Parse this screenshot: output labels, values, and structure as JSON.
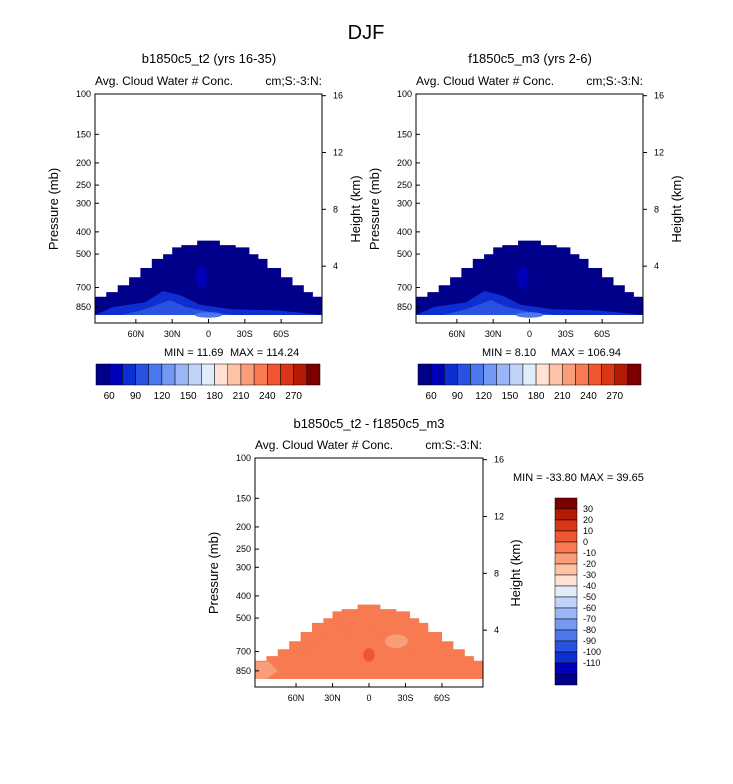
{
  "title": "DJF",
  "palette": {
    "blue_red": [
      "#00008a",
      "#0000b8",
      "#0d2ed1",
      "#2a52e0",
      "#4d77ec",
      "#7499f2",
      "#9ab6f6",
      "#c0d4fa",
      "#e2edfc",
      "#ffe2d2",
      "#fdc3a6",
      "#fa9e79",
      "#f77a50",
      "#f0562f",
      "#d93616",
      "#b31b07",
      "#7d0000"
    ],
    "diff": [
      "#00008a",
      "#0000b8",
      "#0d2ed1",
      "#2a52e0",
      "#4d77ec",
      "#7499f2",
      "#9ab6f6",
      "#c0d4fa",
      "#e2edfc",
      "#ffe2d2",
      "#fdc3a6",
      "#fa9e79",
      "#f77a50",
      "#f0562f",
      "#d93616",
      "#b31b07",
      "#7d0000"
    ]
  },
  "chart_data": [
    {
      "type": "heatmap",
      "title": "b1850c5_t2 (yrs 16-35)",
      "left_label": "Avg. Cloud Water # Conc.",
      "right_label": "cm;S:-3:N:",
      "ylabel": "Pressure (mb)",
      "y2label": "Height (km)",
      "yticks": [
        "100",
        "150",
        "200",
        "250",
        "300",
        "400",
        "500",
        "700",
        "850"
      ],
      "y2ticks": [
        "16",
        "12",
        "8",
        "4"
      ],
      "xticks": [
        "60N",
        "30N",
        "0",
        "30S",
        "60S"
      ],
      "min_label": "MIN =  11.69",
      "max_label": "MAX = 114.24",
      "fill_color": "#00008a"
    },
    {
      "type": "heatmap",
      "title": "f1850c5_m3 (yrs 2-6)",
      "left_label": "Avg. Cloud Water # Conc.",
      "right_label": "cm;S:-3:N:",
      "ylabel": "Pressure (mb)",
      "y2label": "Height (km)",
      "yticks": [
        "100",
        "150",
        "200",
        "250",
        "300",
        "400",
        "500",
        "700",
        "850"
      ],
      "y2ticks": [
        "16",
        "12",
        "8",
        "4"
      ],
      "xticks": [
        "60N",
        "30N",
        "0",
        "30S",
        "60S"
      ],
      "min_label": "MIN =   8.10",
      "max_label": "MAX = 106.94",
      "fill_color": "#00008a"
    },
    {
      "type": "heatmap",
      "title": "b1850c5_t2 - f1850c5_m3",
      "left_label": "Avg. Cloud Water # Conc.",
      "right_label": "cm:S:-3:N:",
      "ylabel": "Pressure (mb)",
      "y2label": "Height (km)",
      "yticks": [
        "100",
        "150",
        "200",
        "250",
        "300",
        "400",
        "500",
        "700",
        "850"
      ],
      "y2ticks": [
        "16",
        "12",
        "8",
        "4"
      ],
      "xticks": [
        "60N",
        "30N",
        "0",
        "30S",
        "60S"
      ],
      "minmax_label": "MIN = -33.80   MAX =  39.65",
      "fill_color": "#f77a50"
    }
  ],
  "colorbar_top": {
    "labels": [
      "60",
      "90",
      "120",
      "150",
      "180",
      "210",
      "240",
      "270"
    ]
  },
  "colorbar_diff": {
    "labels": [
      "30",
      "20",
      "10",
      "0",
      "-10",
      "-20",
      "-30",
      "-40",
      "-50",
      "-60",
      "-70",
      "-80",
      "-90",
      "-100",
      "-110"
    ]
  }
}
